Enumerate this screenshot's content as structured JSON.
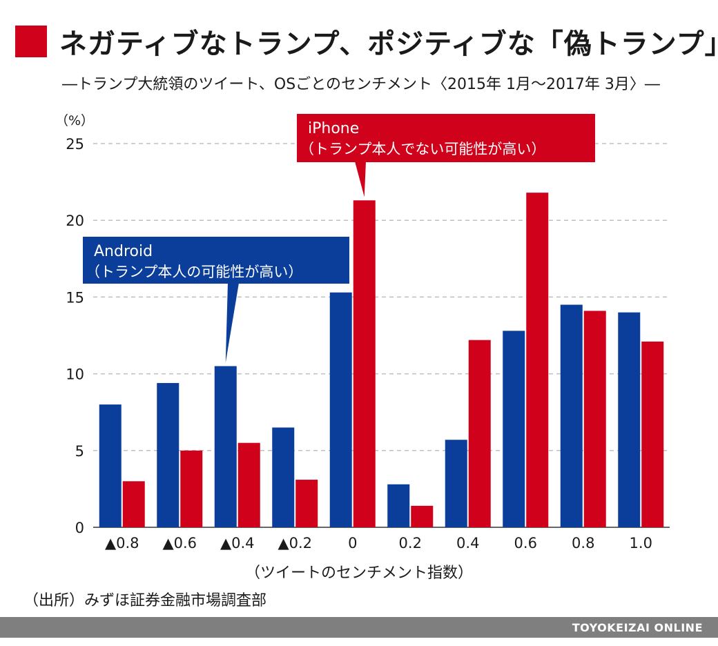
{
  "title": "ネガティブなトランプ、ポジティブな「偽トランプ」",
  "subtitle": "―トランプ大統領のツイート、OSごとのセンチメント〈2015年 1月～2017年 3月〉―",
  "unit_label": "（%）",
  "source": "（出所）みずほ証券金融市場調査部",
  "footer": "TOYOKEIZAI ONLINE",
  "colors": {
    "android": "#0a3e9a",
    "iphone": "#d0021b",
    "title_square": "#d0021b",
    "footer": "#7f7f7f",
    "grid": "#bfbfbf"
  },
  "chart_data": {
    "type": "bar",
    "xlabel": "（ツイートのセンチメント指数）",
    "ylabel": "（%）",
    "ylim": [
      0,
      25
    ],
    "yticks": [
      0,
      5,
      10,
      15,
      20,
      25
    ],
    "grid": "horizontal dashed",
    "categories": [
      "▲0.8",
      "▲0.6",
      "▲0.4",
      "▲0.2",
      "0",
      "0.2",
      "0.4",
      "0.6",
      "0.8",
      "1.0"
    ],
    "series": [
      {
        "name": "Android",
        "values": [
          8.0,
          9.4,
          10.5,
          6.5,
          15.3,
          2.8,
          5.7,
          12.8,
          14.5,
          14.0
        ]
      },
      {
        "name": "iPhone",
        "values": [
          3.0,
          5.0,
          5.5,
          3.1,
          21.3,
          1.4,
          12.2,
          21.8,
          14.1,
          12.1
        ]
      }
    ],
    "annotations": [
      {
        "series": "Android",
        "line1": "Android",
        "line2": "（トランプ本人の可能性が高い）",
        "points_to": "▲0.4"
      },
      {
        "series": "iPhone",
        "line1": "iPhone",
        "line2": "（トランプ本人でない可能性が高い）",
        "points_to": "0"
      }
    ]
  }
}
